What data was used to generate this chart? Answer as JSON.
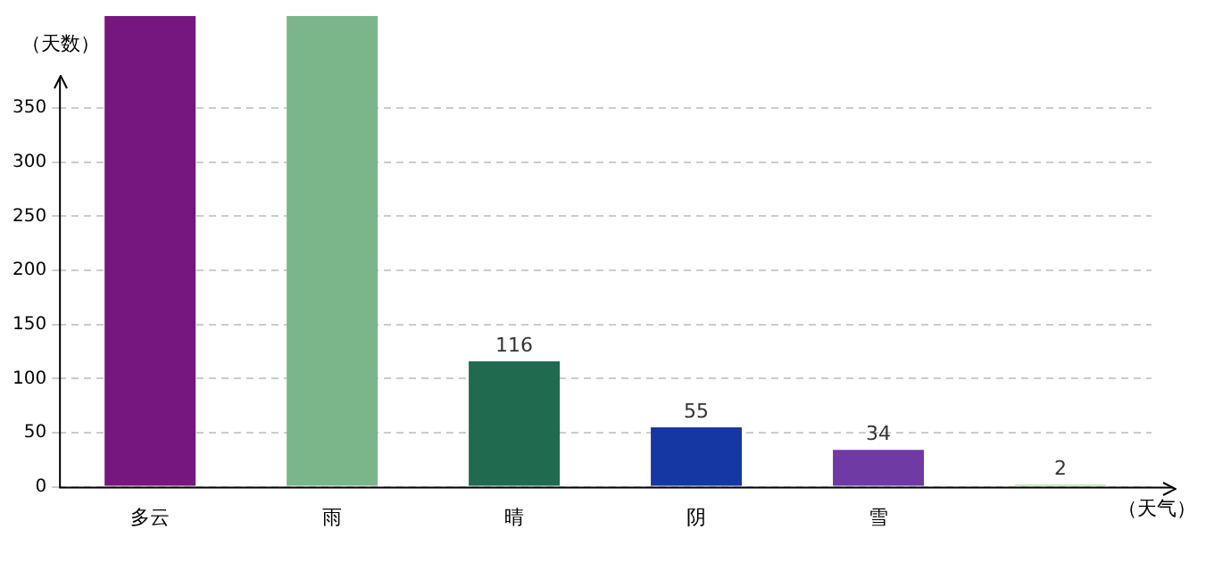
{
  "chart_data": {
    "type": "bar",
    "xlabel": "（天气）",
    "ylabel": "（天数）",
    "categories": [
      "多云",
      "雨",
      "晴",
      "阴",
      "雪",
      null
    ],
    "values": [
      435,
      435,
      116,
      55,
      34,
      2
    ],
    "colors": [
      "#76177f",
      "#7bb58a",
      "#206a4f",
      "#1437a3",
      "#6f3aa3",
      "#a5e08a"
    ],
    "value_labels": [
      null,
      null,
      "116",
      "55",
      "34",
      "2"
    ],
    "ylim": [
      0,
      435
    ],
    "yticks": [
      0,
      50,
      100,
      150,
      200,
      250,
      300,
      350
    ],
    "grid": "y",
    "legend": false
  }
}
